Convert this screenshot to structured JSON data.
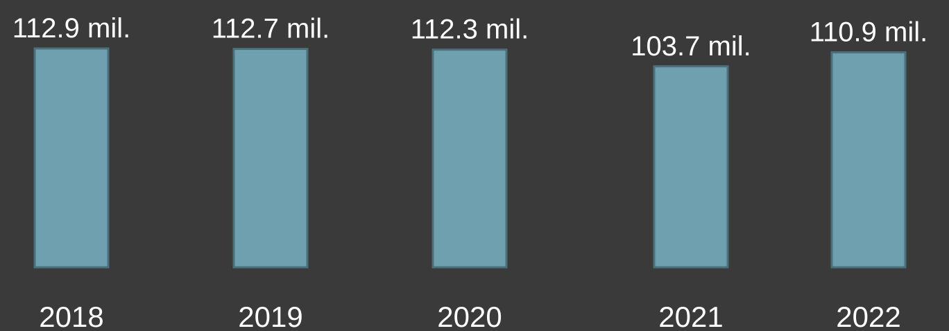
{
  "chart_data": {
    "type": "bar",
    "categories": [
      "2018",
      "2019",
      "2020",
      "2021",
      "2022"
    ],
    "values": [
      112.9,
      112.7,
      112.3,
      103.7,
      110.9
    ],
    "data_labels": [
      "112.9 mil.",
      "112.7 mil.",
      "112.3 mil.",
      "103.7 mil.",
      "110.9 mil."
    ],
    "title": "",
    "xlabel": "",
    "ylabel": "",
    "ylim": [
      0,
      112.9
    ],
    "grid": false,
    "legend": "none",
    "colors": {
      "background": "#3a3a3a",
      "bar_fill": "#6ea0b0",
      "bar_stroke": "#4c6f7c",
      "text": "#ffffff"
    }
  }
}
